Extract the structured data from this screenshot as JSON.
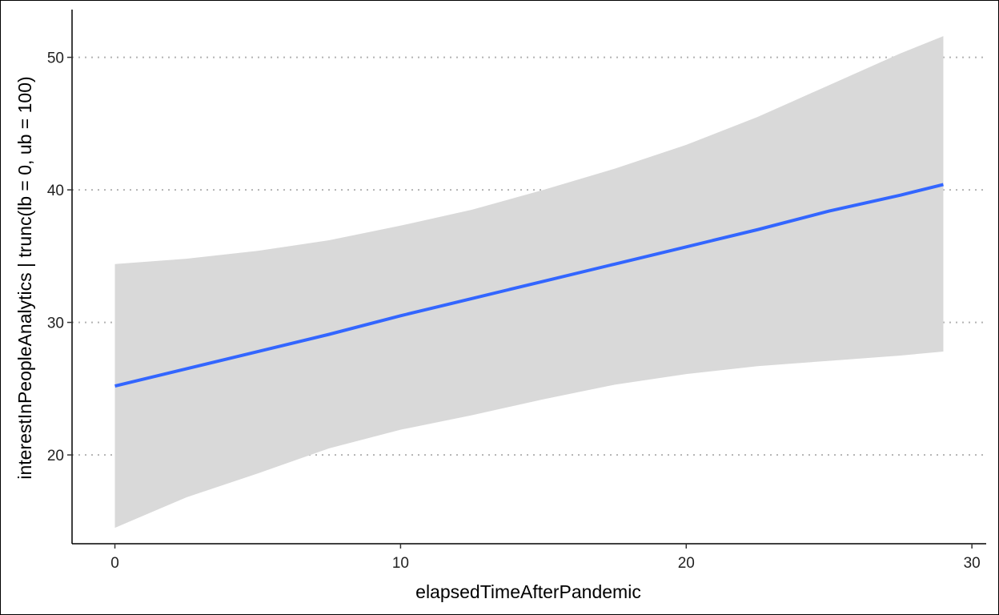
{
  "chart_data": {
    "type": "line",
    "title": "",
    "xlabel": "elapsedTimeAfterPandemic",
    "ylabel": "interestInPeopleAnalytics | trunc(lb = 0, ub = 100)",
    "xlim": [
      -1.5,
      30.5
    ],
    "ylim": [
      13.3,
      53.6
    ],
    "x_ticks": [
      0,
      10,
      20,
      30
    ],
    "y_ticks": [
      20,
      30,
      40,
      50
    ],
    "grid": "horizontal dotted gridlines at y ticks",
    "legend": "none",
    "colors": {
      "line": "#3366ff",
      "ribbon": "#d9d9d9",
      "grid": "#b3b3b3"
    },
    "series": [
      {
        "x": [
          0,
          2.5,
          5,
          7.5,
          10,
          12.5,
          15,
          17.5,
          20,
          22.5,
          25,
          27.5,
          29
        ],
        "y": [
          25.2,
          26.5,
          27.8,
          29.1,
          30.5,
          31.8,
          33.1,
          34.4,
          35.7,
          37.0,
          38.4,
          39.6,
          40.4
        ],
        "lower": [
          14.5,
          16.8,
          18.6,
          20.5,
          21.9,
          23.0,
          24.2,
          25.3,
          26.1,
          26.7,
          27.1,
          27.5,
          27.8
        ],
        "upper": [
          34.4,
          34.8,
          35.4,
          36.2,
          37.3,
          38.5,
          40.0,
          41.6,
          43.4,
          45.5,
          47.9,
          50.3,
          51.6
        ]
      }
    ]
  }
}
